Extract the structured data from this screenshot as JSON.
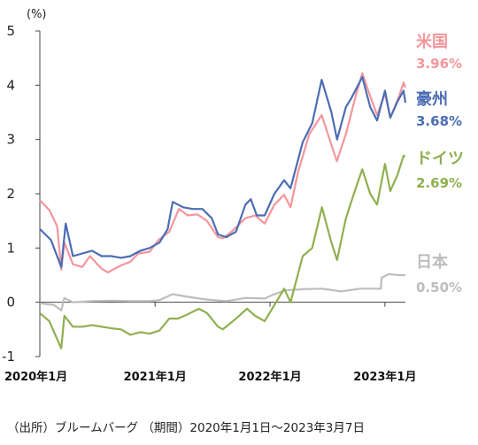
{
  "chart_data": {
    "type": "line",
    "unit_label": "(%)",
    "ylim": [
      -1,
      5
    ],
    "yticks": [
      "5",
      "4",
      "3",
      "2",
      "1",
      "0",
      "-1"
    ],
    "xlim": [
      "2020-01-01",
      "2023-03-07"
    ],
    "xticks": [
      {
        "date": "2020-01-01",
        "label": "2020年1月"
      },
      {
        "date": "2021-01-01",
        "label": "2021年1月"
      },
      {
        "date": "2022-01-01",
        "label": "2022年1月"
      },
      {
        "date": "2023-01-01",
        "label": "2023年1月"
      }
    ],
    "grid": false,
    "legend": "right, labels at line ends",
    "series": [
      {
        "name": "米国",
        "end_label": "3.96%",
        "color": "#f4969c",
        "points": [
          [
            "2020-01-01",
            1.88
          ],
          [
            "2020-01-31",
            1.7
          ],
          [
            "2020-02-25",
            1.4
          ],
          [
            "2020-03-09",
            0.6
          ],
          [
            "2020-03-19",
            1.1
          ],
          [
            "2020-04-15",
            0.7
          ],
          [
            "2020-05-15",
            0.65
          ],
          [
            "2020-06-08",
            0.85
          ],
          [
            "2020-07-15",
            0.62
          ],
          [
            "2020-08-04",
            0.55
          ],
          [
            "2020-09-15",
            0.68
          ],
          [
            "2020-10-15",
            0.75
          ],
          [
            "2020-11-09",
            0.9
          ],
          [
            "2020-12-15",
            0.93
          ],
          [
            "2021-01-12",
            1.15
          ],
          [
            "2021-02-15",
            1.3
          ],
          [
            "2021-03-18",
            1.72
          ],
          [
            "2021-04-15",
            1.6
          ],
          [
            "2021-05-15",
            1.62
          ],
          [
            "2021-06-15",
            1.5
          ],
          [
            "2021-07-20",
            1.2
          ],
          [
            "2021-08-04",
            1.18
          ],
          [
            "2021-09-01",
            1.3
          ],
          [
            "2021-10-15",
            1.55
          ],
          [
            "2021-11-15",
            1.6
          ],
          [
            "2021-12-15",
            1.45
          ],
          [
            "2022-01-15",
            1.8
          ],
          [
            "2022-02-15",
            1.98
          ],
          [
            "2022-03-07",
            1.75
          ],
          [
            "2022-03-31",
            2.4
          ],
          [
            "2022-05-06",
            3.1
          ],
          [
            "2022-06-14",
            3.45
          ],
          [
            "2022-07-15",
            2.9
          ],
          [
            "2022-08-01",
            2.6
          ],
          [
            "2022-08-30",
            3.1
          ],
          [
            "2022-09-30",
            3.8
          ],
          [
            "2022-10-21",
            4.22
          ],
          [
            "2022-11-15",
            3.8
          ],
          [
            "2022-12-07",
            3.45
          ],
          [
            "2023-01-01",
            3.85
          ],
          [
            "2023-01-18",
            3.4
          ],
          [
            "2023-02-15",
            3.8
          ],
          [
            "2023-03-01",
            4.05
          ],
          [
            "2023-03-07",
            3.96
          ]
        ]
      },
      {
        "name": "豪州",
        "end_label": "3.68%",
        "color": "#4c6db4",
        "points": [
          [
            "2020-01-01",
            1.35
          ],
          [
            "2020-02-05",
            1.15
          ],
          [
            "2020-03-09",
            0.65
          ],
          [
            "2020-03-23",
            1.45
          ],
          [
            "2020-04-15",
            0.85
          ],
          [
            "2020-05-15",
            0.9
          ],
          [
            "2020-06-15",
            0.95
          ],
          [
            "2020-07-15",
            0.85
          ],
          [
            "2020-08-15",
            0.85
          ],
          [
            "2020-09-15",
            0.82
          ],
          [
            "2020-10-15",
            0.85
          ],
          [
            "2020-11-15",
            0.95
          ],
          [
            "2020-12-15",
            1.0
          ],
          [
            "2021-01-15",
            1.1
          ],
          [
            "2021-02-10",
            1.35
          ],
          [
            "2021-02-26",
            1.85
          ],
          [
            "2021-03-31",
            1.75
          ],
          [
            "2021-04-30",
            1.72
          ],
          [
            "2021-05-31",
            1.72
          ],
          [
            "2021-06-30",
            1.55
          ],
          [
            "2021-07-20",
            1.25
          ],
          [
            "2021-08-15",
            1.2
          ],
          [
            "2021-09-15",
            1.3
          ],
          [
            "2021-10-15",
            1.8
          ],
          [
            "2021-11-01",
            1.9
          ],
          [
            "2021-11-20",
            1.6
          ],
          [
            "2021-12-15",
            1.6
          ],
          [
            "2022-01-15",
            2.0
          ],
          [
            "2022-02-15",
            2.25
          ],
          [
            "2022-03-07",
            2.1
          ],
          [
            "2022-04-15",
            2.95
          ],
          [
            "2022-05-15",
            3.3
          ],
          [
            "2022-06-14",
            4.1
          ],
          [
            "2022-07-15",
            3.5
          ],
          [
            "2022-08-02",
            3.0
          ],
          [
            "2022-08-30",
            3.6
          ],
          [
            "2022-09-15",
            3.75
          ],
          [
            "2022-10-21",
            4.15
          ],
          [
            "2022-11-15",
            3.6
          ],
          [
            "2022-12-07",
            3.35
          ],
          [
            "2023-01-01",
            3.9
          ],
          [
            "2023-01-18",
            3.4
          ],
          [
            "2023-02-10",
            3.7
          ],
          [
            "2023-03-01",
            3.9
          ],
          [
            "2023-03-07",
            3.68
          ]
        ]
      },
      {
        "name": "ドイツ",
        "end_label": "2.69%",
        "color": "#8fb050",
        "points": [
          [
            "2020-01-01",
            -0.2
          ],
          [
            "2020-01-31",
            -0.35
          ],
          [
            "2020-03-09",
            -0.85
          ],
          [
            "2020-03-19",
            -0.25
          ],
          [
            "2020-04-15",
            -0.45
          ],
          [
            "2020-05-15",
            -0.45
          ],
          [
            "2020-06-15",
            -0.42
          ],
          [
            "2020-07-15",
            -0.45
          ],
          [
            "2020-08-15",
            -0.48
          ],
          [
            "2020-09-15",
            -0.5
          ],
          [
            "2020-10-15",
            -0.6
          ],
          [
            "2020-11-15",
            -0.55
          ],
          [
            "2020-12-15",
            -0.58
          ],
          [
            "2021-01-15",
            -0.52
          ],
          [
            "2021-02-15",
            -0.3
          ],
          [
            "2021-03-15",
            -0.3
          ],
          [
            "2021-04-15",
            -0.22
          ],
          [
            "2021-05-20",
            -0.12
          ],
          [
            "2021-06-15",
            -0.2
          ],
          [
            "2021-07-20",
            -0.45
          ],
          [
            "2021-08-04",
            -0.5
          ],
          [
            "2021-09-15",
            -0.3
          ],
          [
            "2021-10-20",
            -0.12
          ],
          [
            "2021-11-15",
            -0.25
          ],
          [
            "2021-12-15",
            -0.35
          ],
          [
            "2022-01-15",
            -0.05
          ],
          [
            "2022-02-15",
            0.25
          ],
          [
            "2022-03-07",
            0.0
          ],
          [
            "2022-04-15",
            0.85
          ],
          [
            "2022-05-15",
            1.0
          ],
          [
            "2022-06-15",
            1.75
          ],
          [
            "2022-07-15",
            1.1
          ],
          [
            "2022-08-02",
            0.78
          ],
          [
            "2022-08-30",
            1.55
          ],
          [
            "2022-09-30",
            2.1
          ],
          [
            "2022-10-21",
            2.45
          ],
          [
            "2022-11-15",
            2.0
          ],
          [
            "2022-12-07",
            1.8
          ],
          [
            "2023-01-01",
            2.55
          ],
          [
            "2023-01-18",
            2.05
          ],
          [
            "2023-02-10",
            2.35
          ],
          [
            "2023-03-01",
            2.7
          ],
          [
            "2023-03-07",
            2.69
          ]
        ]
      },
      {
        "name": "日本",
        "end_label": "0.50%",
        "color": "#bdbdbd",
        "points": [
          [
            "2020-01-01",
            -0.02
          ],
          [
            "2020-02-15",
            -0.05
          ],
          [
            "2020-03-09",
            -0.15
          ],
          [
            "2020-03-19",
            0.08
          ],
          [
            "2020-04-15",
            0.0
          ],
          [
            "2020-06-15",
            0.02
          ],
          [
            "2020-08-15",
            0.03
          ],
          [
            "2020-10-15",
            0.02
          ],
          [
            "2020-12-15",
            0.02
          ],
          [
            "2021-01-15",
            0.04
          ],
          [
            "2021-02-26",
            0.15
          ],
          [
            "2021-04-15",
            0.1
          ],
          [
            "2021-06-15",
            0.05
          ],
          [
            "2021-08-15",
            0.02
          ],
          [
            "2021-10-15",
            0.08
          ],
          [
            "2021-12-15",
            0.07
          ],
          [
            "2022-01-15",
            0.15
          ],
          [
            "2022-02-20",
            0.22
          ],
          [
            "2022-04-15",
            0.24
          ],
          [
            "2022-06-15",
            0.25
          ],
          [
            "2022-08-15",
            0.2
          ],
          [
            "2022-10-15",
            0.25
          ],
          [
            "2022-12-19",
            0.25
          ],
          [
            "2022-12-21",
            0.45
          ],
          [
            "2023-01-13",
            0.52
          ],
          [
            "2023-02-15",
            0.5
          ],
          [
            "2023-03-07",
            0.5
          ]
        ]
      }
    ]
  },
  "source_note": "（出所）ブルームバーグ （期間）2020年1月1日～2023年3月7日"
}
